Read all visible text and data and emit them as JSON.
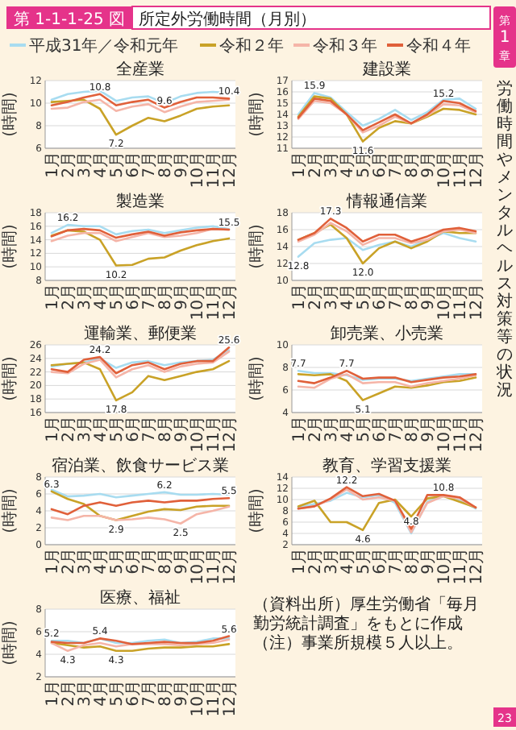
{
  "chart_data": [
    {
      "type": "other",
      "title": "所定外労働時間（月別）",
      "annotations": [
        "第 1-1-1-25 図"
      ]
    },
    {
      "type": "line",
      "title": "全産業",
      "ylabel": "(時間)",
      "categories": [
        "1月",
        "2月",
        "3月",
        "4月",
        "5月",
        "6月",
        "7月",
        "8月",
        "9月",
        "10月",
        "11月",
        "12月"
      ],
      "ylim": [
        6,
        12
      ],
      "yticks": [
        6,
        8,
        10,
        12
      ],
      "grid": "y",
      "legend": "top",
      "series": [
        {
          "name": "平成31年／令和元年",
          "color": "#a8dcf0",
          "values": [
            10.3,
            10.8,
            11.0,
            11.1,
            10.2,
            10.5,
            10.6,
            10.0,
            10.6,
            10.9,
            11.0,
            10.9
          ],
          "value_labels": [
            null,
            null,
            null,
            null,
            null,
            null,
            null,
            null,
            null,
            null,
            null,
            null
          ]
        },
        {
          "name": "令和２年",
          "color": "#c9a227",
          "values": [
            10.1,
            10.2,
            10.3,
            9.5,
            7.2,
            8.0,
            8.7,
            8.4,
            8.9,
            9.5,
            9.7,
            9.8
          ],
          "value_labels": [
            null,
            null,
            null,
            null,
            "7.2",
            null,
            null,
            null,
            null,
            null,
            null,
            null
          ]
        },
        {
          "name": "令和３年",
          "color": "#f5b5a8",
          "values": [
            9.5,
            9.6,
            10.1,
            10.3,
            9.3,
            9.7,
            9.9,
            9.2,
            9.7,
            10.1,
            10.2,
            10.3
          ],
          "value_labels": [
            null,
            null,
            null,
            null,
            null,
            null,
            null,
            null,
            null,
            null,
            null,
            null
          ]
        },
        {
          "name": "令和４年",
          "color": "#e0603a",
          "values": [
            9.8,
            10.1,
            10.5,
            10.8,
            9.8,
            10.1,
            10.3,
            9.6,
            10.1,
            10.5,
            10.5,
            10.4
          ],
          "value_labels": [
            null,
            null,
            null,
            "10.8",
            null,
            null,
            null,
            "9.6",
            null,
            null,
            null,
            "10.4"
          ]
        }
      ]
    },
    {
      "type": "line",
      "title": "建設業",
      "ylabel": "(時間)",
      "categories": [
        "1月",
        "2月",
        "3月",
        "4月",
        "5月",
        "6月",
        "7月",
        "8月",
        "9月",
        "10月",
        "11月",
        "12月"
      ],
      "ylim": [
        11,
        17
      ],
      "yticks": [
        11,
        12,
        13,
        14,
        15,
        16,
        17
      ],
      "grid": "y",
      "series": [
        {
          "name": "平成31年／令和元年",
          "color": "#a8dcf0",
          "values": [
            14.0,
            15.9,
            15.5,
            14.2,
            13.0,
            13.6,
            14.4,
            13.5,
            14.2,
            15.3,
            15.4,
            14.5
          ],
          "value_labels": [
            null,
            "15.9",
            null,
            null,
            null,
            null,
            null,
            null,
            null,
            null,
            null,
            null
          ]
        },
        {
          "name": "令和２年",
          "color": "#c9a227",
          "values": [
            13.8,
            15.6,
            15.4,
            14.0,
            11.6,
            12.8,
            13.4,
            13.2,
            13.8,
            14.5,
            14.4,
            14.0
          ],
          "value_labels": [
            null,
            null,
            null,
            null,
            "11.6",
            null,
            null,
            null,
            null,
            null,
            null,
            null
          ]
        },
        {
          "name": "令和３年",
          "color": "#f5b5a8",
          "values": [
            13.6,
            15.2,
            15.0,
            14.0,
            12.4,
            13.0,
            13.8,
            13.2,
            13.9,
            14.9,
            14.8,
            14.2
          ],
          "value_labels": [
            null,
            null,
            null,
            null,
            null,
            null,
            null,
            null,
            null,
            null,
            null,
            null
          ]
        },
        {
          "name": "令和４年",
          "color": "#e0603a",
          "values": [
            13.7,
            15.4,
            15.2,
            14.0,
            12.6,
            13.3,
            14.0,
            13.2,
            14.0,
            15.2,
            15.0,
            14.3
          ],
          "value_labels": [
            null,
            null,
            null,
            null,
            null,
            null,
            null,
            null,
            null,
            "15.2",
            null,
            null
          ]
        }
      ]
    },
    {
      "type": "line",
      "title": "製造業",
      "ylabel": "(時間)",
      "categories": [
        "1月",
        "2月",
        "3月",
        "4月",
        "5月",
        "6月",
        "7月",
        "8月",
        "9月",
        "10月",
        "11月",
        "12月"
      ],
      "ylim": [
        8,
        18
      ],
      "yticks": [
        8,
        10,
        12,
        14,
        16,
        18
      ],
      "grid": "y",
      "series": [
        {
          "name": "平成31年／令和元年",
          "color": "#a8dcf0",
          "values": [
            15.0,
            16.2,
            16.0,
            16.0,
            14.8,
            15.3,
            15.5,
            15.0,
            15.4,
            15.8,
            16.0,
            15.6
          ],
          "value_labels": [
            null,
            "16.2",
            null,
            null,
            null,
            null,
            null,
            null,
            null,
            null,
            null,
            null
          ]
        },
        {
          "name": "令和２年",
          "color": "#c9a227",
          "values": [
            14.6,
            15.4,
            15.2,
            14.0,
            10.2,
            10.3,
            11.2,
            11.4,
            12.4,
            13.2,
            13.8,
            14.2
          ],
          "value_labels": [
            null,
            null,
            null,
            null,
            "10.2",
            null,
            null,
            null,
            null,
            null,
            null,
            null
          ]
        },
        {
          "name": "令和３年",
          "color": "#f5b5a8",
          "values": [
            13.8,
            14.6,
            15.0,
            15.0,
            13.8,
            14.4,
            15.0,
            14.4,
            14.6,
            15.0,
            15.6,
            15.5
          ],
          "value_labels": [
            null,
            null,
            null,
            null,
            null,
            null,
            null,
            null,
            null,
            null,
            null,
            null
          ]
        },
        {
          "name": "令和４年",
          "color": "#e0603a",
          "values": [
            14.5,
            15.4,
            15.6,
            15.4,
            14.3,
            14.8,
            15.2,
            14.6,
            15.1,
            15.4,
            15.6,
            15.5
          ],
          "value_labels": [
            null,
            null,
            null,
            null,
            null,
            null,
            null,
            null,
            null,
            null,
            null,
            "15.5"
          ]
        }
      ]
    },
    {
      "type": "line",
      "title": "情報通信業",
      "ylabel": "(時間)",
      "categories": [
        "1月",
        "2月",
        "3月",
        "4月",
        "5月",
        "6月",
        "7月",
        "8月",
        "9月",
        "10月",
        "11月",
        "12月"
      ],
      "ylim": [
        10,
        18
      ],
      "yticks": [
        10,
        12,
        14,
        16,
        18
      ],
      "grid": "y",
      "series": [
        {
          "name": "平成31年／令和元年",
          "color": "#a8dcf0",
          "values": [
            12.8,
            14.4,
            14.8,
            15.0,
            13.6,
            14.2,
            14.6,
            14.0,
            14.8,
            15.6,
            15.0,
            14.6
          ],
          "value_labels": [
            "12.8",
            null,
            null,
            null,
            null,
            null,
            null,
            null,
            null,
            null,
            null,
            null
          ]
        },
        {
          "name": "令和２年",
          "color": "#c9a227",
          "values": [
            14.8,
            15.6,
            16.6,
            15.0,
            12.0,
            13.8,
            14.6,
            13.8,
            14.6,
            15.8,
            15.6,
            15.6
          ],
          "value_labels": [
            null,
            null,
            null,
            null,
            "12.0",
            null,
            null,
            null,
            null,
            null,
            null,
            null
          ]
        },
        {
          "name": "令和３年",
          "color": "#f5b5a8",
          "values": [
            14.6,
            15.4,
            16.8,
            15.8,
            14.2,
            15.0,
            15.0,
            14.4,
            14.8,
            15.8,
            16.0,
            15.6
          ],
          "value_labels": [
            null,
            null,
            null,
            null,
            null,
            null,
            null,
            null,
            null,
            null,
            null,
            null
          ]
        },
        {
          "name": "令和４年",
          "color": "#e0603a",
          "values": [
            14.8,
            15.6,
            17.3,
            16.2,
            14.6,
            15.4,
            15.4,
            14.6,
            15.2,
            16.0,
            16.2,
            15.8
          ],
          "value_labels": [
            null,
            null,
            "17.3",
            null,
            null,
            null,
            null,
            null,
            null,
            null,
            null,
            null
          ]
        }
      ]
    },
    {
      "type": "line",
      "title": "運輸業、郵便業",
      "ylabel": "(時間)",
      "categories": [
        "1月",
        "2月",
        "3月",
        "4月",
        "5月",
        "6月",
        "7月",
        "8月",
        "9月",
        "10月",
        "11月",
        "12月"
      ],
      "ylim": [
        16,
        26
      ],
      "yticks": [
        16,
        18,
        20,
        22,
        24,
        26
      ],
      "grid": "y",
      "series": [
        {
          "name": "平成31年／令和元年",
          "color": "#a8dcf0",
          "values": [
            22.8,
            23.2,
            23.4,
            24.0,
            22.6,
            23.4,
            23.6,
            23.0,
            23.4,
            23.6,
            23.8,
            25.2
          ],
          "value_labels": [
            null,
            null,
            null,
            null,
            null,
            null,
            null,
            null,
            null,
            null,
            null,
            null
          ]
        },
        {
          "name": "令和２年",
          "color": "#c9a227",
          "values": [
            23.0,
            23.2,
            23.4,
            22.4,
            17.8,
            19.0,
            21.4,
            20.8,
            21.4,
            22.0,
            22.4,
            23.6
          ],
          "value_labels": [
            null,
            null,
            null,
            null,
            "17.8",
            null,
            null,
            null,
            null,
            null,
            null,
            null
          ]
        },
        {
          "name": "令和３年",
          "color": "#f5b5a8",
          "values": [
            22.0,
            21.8,
            23.2,
            23.8,
            21.2,
            22.4,
            23.0,
            22.0,
            22.8,
            23.2,
            23.4,
            25.0
          ],
          "value_labels": [
            null,
            null,
            null,
            null,
            null,
            null,
            null,
            null,
            null,
            null,
            null,
            null
          ]
        },
        {
          "name": "令和４年",
          "color": "#e0603a",
          "values": [
            22.4,
            22.0,
            23.8,
            24.2,
            21.8,
            23.0,
            23.4,
            22.4,
            23.2,
            23.6,
            23.6,
            25.6
          ],
          "value_labels": [
            null,
            null,
            null,
            "24.2",
            null,
            null,
            null,
            null,
            null,
            null,
            null,
            "25.6"
          ]
        }
      ]
    },
    {
      "type": "line",
      "title": "卸売業、小売業",
      "ylabel": "(時間)",
      "categories": [
        "1月",
        "2月",
        "3月",
        "4月",
        "5月",
        "6月",
        "7月",
        "8月",
        "9月",
        "10月",
        "11月",
        "12月"
      ],
      "ylim": [
        4,
        10
      ],
      "yticks": [
        4,
        6,
        8,
        10
      ],
      "grid": "y",
      "series": [
        {
          "name": "平成31年／令和元年",
          "color": "#a8dcf0",
          "values": [
            7.7,
            7.5,
            7.5,
            7.3,
            6.9,
            7.0,
            7.0,
            6.8,
            7.0,
            7.2,
            7.4,
            7.4
          ],
          "value_labels": [
            "7.7",
            null,
            null,
            null,
            null,
            null,
            null,
            null,
            null,
            null,
            null,
            null
          ]
        },
        {
          "name": "令和２年",
          "color": "#c9a227",
          "values": [
            7.4,
            7.3,
            7.4,
            6.8,
            5.1,
            5.7,
            6.3,
            6.2,
            6.4,
            6.7,
            6.8,
            7.1
          ],
          "value_labels": [
            null,
            null,
            null,
            null,
            "5.1",
            null,
            null,
            null,
            null,
            null,
            null,
            null
          ]
        },
        {
          "name": "令和３年",
          "color": "#f5b5a8",
          "values": [
            6.3,
            6.2,
            7.0,
            7.4,
            6.6,
            6.7,
            6.7,
            6.3,
            6.6,
            6.8,
            7.0,
            7.3
          ],
          "value_labels": [
            null,
            null,
            null,
            null,
            null,
            null,
            null,
            null,
            null,
            null,
            null,
            null
          ]
        },
        {
          "name": "令和４年",
          "color": "#e0603a",
          "values": [
            6.8,
            6.6,
            7.1,
            7.7,
            7.0,
            7.1,
            7.1,
            6.7,
            6.9,
            7.1,
            7.2,
            7.4
          ],
          "value_labels": [
            null,
            null,
            null,
            "7.7",
            null,
            null,
            null,
            null,
            null,
            null,
            null,
            null
          ]
        }
      ]
    },
    {
      "type": "line",
      "title": "宿泊業、飲食サービス業",
      "ylabel": "(時間)",
      "categories": [
        "1月",
        "2月",
        "3月",
        "4月",
        "5月",
        "6月",
        "7月",
        "8月",
        "9月",
        "10月",
        "11月",
        "12月"
      ],
      "ylim": [
        0,
        8
      ],
      "yticks": [
        0,
        2,
        4,
        6,
        8
      ],
      "grid": "y",
      "series": [
        {
          "name": "平成31年／令和元年",
          "color": "#a8dcf0",
          "values": [
            6.5,
            5.7,
            5.8,
            6.0,
            5.6,
            5.8,
            6.0,
            6.2,
            5.9,
            5.9,
            6.0,
            5.9
          ],
          "value_labels": [
            null,
            null,
            null,
            null,
            null,
            null,
            null,
            "6.2",
            null,
            null,
            null,
            null
          ]
        },
        {
          "name": "令和２年",
          "color": "#c9a227",
          "values": [
            6.3,
            5.4,
            4.8,
            3.4,
            2.9,
            3.4,
            3.9,
            4.2,
            4.1,
            4.5,
            4.6,
            4.6
          ],
          "value_labels": [
            "6.3",
            null,
            null,
            null,
            "2.9",
            null,
            null,
            null,
            null,
            null,
            null,
            null
          ]
        },
        {
          "name": "令和３年",
          "color": "#f5b5a8",
          "values": [
            3.2,
            2.9,
            3.4,
            3.4,
            2.9,
            3.0,
            3.2,
            3.0,
            2.5,
            3.6,
            4.0,
            4.5
          ],
          "value_labels": [
            null,
            null,
            null,
            null,
            null,
            null,
            null,
            null,
            "2.5",
            null,
            null,
            null
          ]
        },
        {
          "name": "令和４年",
          "color": "#e0603a",
          "values": [
            4.2,
            3.6,
            4.6,
            5.0,
            4.6,
            5.0,
            5.2,
            5.0,
            5.2,
            5.2,
            5.4,
            5.5
          ],
          "value_labels": [
            null,
            null,
            null,
            null,
            null,
            null,
            null,
            null,
            null,
            null,
            null,
            "5.5"
          ]
        }
      ]
    },
    {
      "type": "line",
      "title": "教育、学習支援業",
      "ylabel": "(時間)",
      "categories": [
        "1月",
        "2月",
        "3月",
        "4月",
        "5月",
        "6月",
        "7月",
        "8月",
        "9月",
        "10月",
        "11月",
        "12月"
      ],
      "ylim": [
        2,
        14
      ],
      "yticks": [
        2,
        4,
        6,
        8,
        10,
        12,
        14
      ],
      "grid": "y",
      "series": [
        {
          "name": "平成31年／令和元年",
          "color": "#a8dcf0",
          "values": [
            8.6,
            9.2,
            9.8,
            11.2,
            10.4,
            10.8,
            9.4,
            4.0,
            9.6,
            10.6,
            10.0,
            8.4
          ],
          "value_labels": [
            null,
            null,
            null,
            null,
            null,
            null,
            null,
            null,
            null,
            null,
            null,
            null
          ]
        },
        {
          "name": "令和２年",
          "color": "#c9a227",
          "values": [
            8.8,
            9.8,
            6.0,
            6.0,
            4.6,
            9.4,
            10.0,
            7.0,
            10.2,
            10.6,
            9.6,
            8.6
          ],
          "value_labels": [
            null,
            null,
            null,
            null,
            "4.6",
            null,
            null,
            null,
            null,
            null,
            null,
            null
          ]
        },
        {
          "name": "令和３年",
          "color": "#f5b5a8",
          "values": [
            8.4,
            8.8,
            10.0,
            11.8,
            10.0,
            10.4,
            9.8,
            4.2,
            9.4,
            10.6,
            10.2,
            8.6
          ],
          "value_labels": [
            null,
            null,
            null,
            null,
            null,
            null,
            null,
            null,
            null,
            null,
            null,
            null
          ]
        },
        {
          "name": "令和４年",
          "color": "#e0603a",
          "values": [
            8.4,
            8.8,
            10.2,
            12.2,
            10.6,
            11.0,
            9.8,
            4.8,
            10.8,
            10.8,
            10.4,
            8.6
          ],
          "value_labels": [
            null,
            null,
            null,
            "12.2",
            null,
            null,
            null,
            "4.8",
            null,
            "10.8",
            null,
            null
          ]
        }
      ]
    },
    {
      "type": "line",
      "title": "医療、福祉",
      "ylabel": "(時間)",
      "categories": [
        "1月",
        "2月",
        "3月",
        "4月",
        "5月",
        "6月",
        "7月",
        "8月",
        "9月",
        "10月",
        "11月",
        "12月"
      ],
      "ylim": [
        2,
        8
      ],
      "yticks": [
        2,
        4,
        6,
        8
      ],
      "grid": "y",
      "series": [
        {
          "name": "平成31年／令和元年",
          "color": "#a8dcf0",
          "values": [
            5.2,
            5.2,
            5.0,
            5.4,
            5.0,
            5.0,
            5.2,
            5.3,
            5.0,
            5.1,
            5.4,
            5.4
          ],
          "value_labels": [
            "5.2",
            null,
            null,
            null,
            null,
            null,
            null,
            null,
            null,
            null,
            null,
            null
          ]
        },
        {
          "name": "令和２年",
          "color": "#c9a227",
          "values": [
            5.0,
            4.8,
            4.6,
            4.7,
            4.3,
            4.3,
            4.5,
            4.6,
            4.6,
            4.7,
            4.7,
            4.9
          ],
          "value_labels": [
            null,
            null,
            null,
            null,
            "4.3",
            null,
            null,
            null,
            null,
            null,
            null,
            null
          ]
        },
        {
          "name": "令和３年",
          "color": "#f5b5a8",
          "values": [
            5.0,
            4.3,
            4.8,
            5.0,
            4.7,
            4.9,
            4.9,
            4.9,
            4.8,
            4.9,
            5.0,
            5.3
          ],
          "value_labels": [
            null,
            "4.3",
            null,
            null,
            null,
            null,
            null,
            null,
            null,
            null,
            null,
            null
          ]
        },
        {
          "name": "令和４年",
          "color": "#e0603a",
          "values": [
            5.1,
            5.0,
            5.0,
            5.4,
            5.2,
            4.9,
            5.0,
            5.1,
            5.0,
            5.0,
            5.2,
            5.6
          ],
          "value_labels": [
            null,
            null,
            null,
            "5.4",
            null,
            null,
            null,
            null,
            null,
            null,
            null,
            "5.6"
          ]
        }
      ]
    },
    {
      "type": "other",
      "annotations": [
        "（資料出所）厚生労働省「毎月勤労統計調査」をもとに作成",
        "（注）事業所規模５人以上。"
      ]
    },
    {
      "type": "other",
      "title": "労働時間やメンタルヘルス対策等の状況",
      "annotations": [
        "第",
        "1",
        "章",
        "23"
      ]
    }
  ]
}
